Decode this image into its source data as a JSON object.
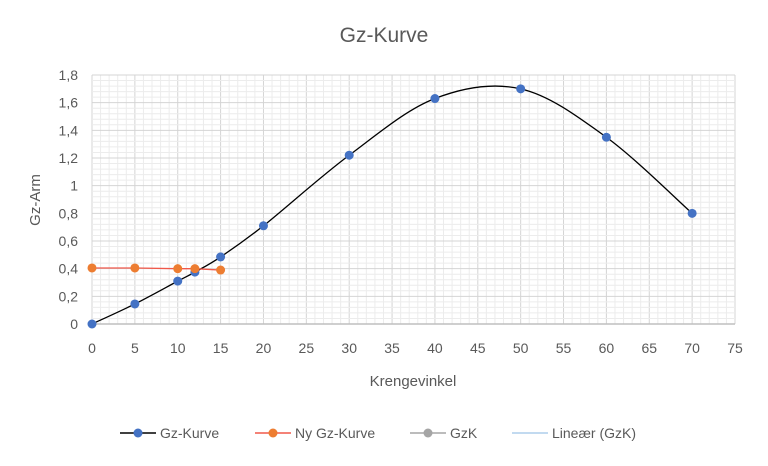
{
  "chart_data": {
    "type": "line",
    "title": "Gz-Kurve",
    "xlabel": "Krengevinkel",
    "ylabel": "Gz-Arm",
    "xlim": [
      0,
      75
    ],
    "ylim": [
      0,
      1.8
    ],
    "x_ticks": [
      "0",
      "5",
      "10",
      "15",
      "20",
      "25",
      "30",
      "35",
      "40",
      "45",
      "50",
      "55",
      "60",
      "65",
      "70",
      "75"
    ],
    "y_ticks": [
      "0",
      "0,2",
      "0,4",
      "0,6",
      "0,8",
      "1",
      "1,2",
      "1,4",
      "1,6",
      "1,8"
    ],
    "grid": "major and minor",
    "legend_position": "bottom",
    "series": [
      {
        "name": "Gz-Kurve",
        "line_color": "#000000",
        "marker_color": "#4472c4",
        "smooth": true,
        "x": [
          0,
          5,
          10,
          12,
          15,
          20,
          30,
          40,
          50,
          60,
          70
        ],
        "y": [
          0,
          0.145,
          0.31,
          0.375,
          0.485,
          0.71,
          1.22,
          1.63,
          1.7,
          1.35,
          0.8
        ]
      },
      {
        "name": "Ny Gz-Kurve",
        "line_color": "#f0584a",
        "marker_color": "#ed7d31",
        "smooth": false,
        "x": [
          0,
          5,
          10,
          12,
          15
        ],
        "y": [
          0.405,
          0.405,
          0.4,
          0.4,
          0.39
        ]
      },
      {
        "name": "GzK",
        "line_color": "#a5a5a5",
        "marker_color": "#a5a5a5",
        "x": [],
        "y": []
      },
      {
        "name": "Lineær (GzK)",
        "line_color": "#9dc3e6",
        "marker_color": null,
        "x": [],
        "y": []
      }
    ]
  }
}
